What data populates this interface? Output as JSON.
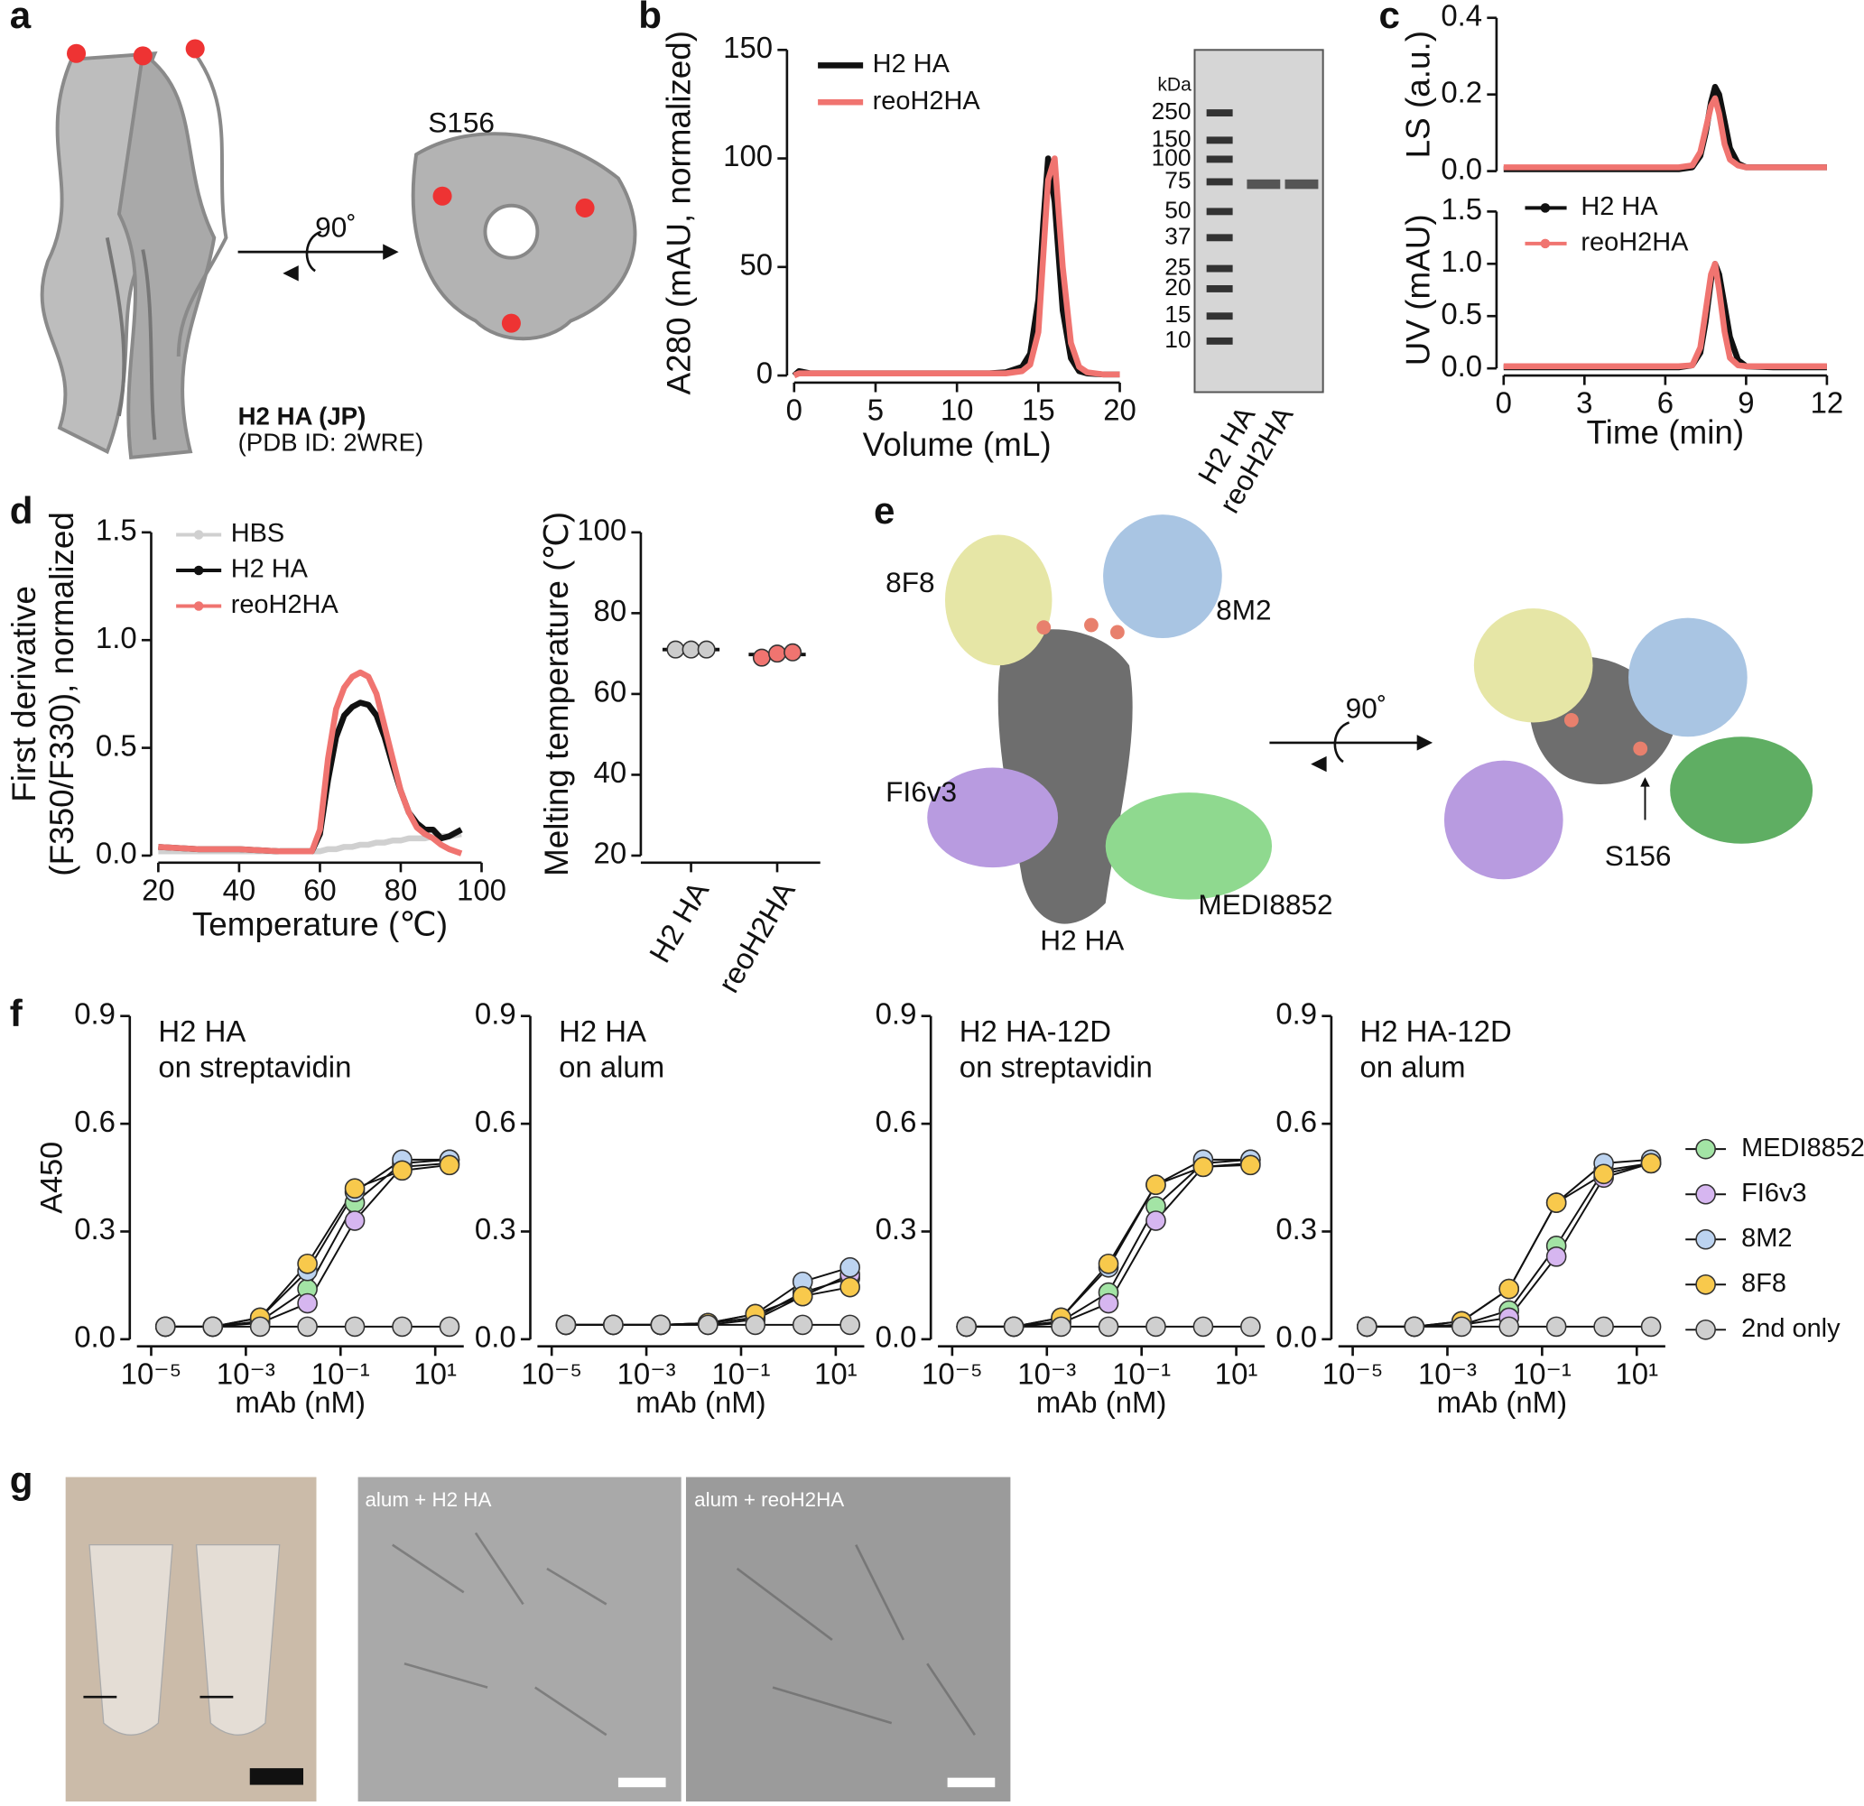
{
  "panel_labels": [
    "a",
    "b",
    "c",
    "d",
    "e",
    "f",
    "g"
  ],
  "structure": {
    "site": "S156",
    "rotation": "90˚",
    "name": "H2 HA (JP)",
    "pdb": "(PDB ID: 2WRE)"
  },
  "gel": {
    "unit": "kDa",
    "ladder": [
      250,
      150,
      100,
      75,
      50,
      37,
      25,
      20,
      15,
      10
    ],
    "lanes": [
      "H2 HA",
      "reoH2HA"
    ]
  },
  "em_map": {
    "antibodies": [
      "8F8",
      "8M2",
      "FI6v3",
      "MEDI8852"
    ],
    "antigen": "H2 HA",
    "rotation": "90˚",
    "site": "S156"
  },
  "micrographs": [
    "alum + H2 HA",
    "alum + reoH2HA"
  ],
  "chart_data": [
    {
      "type": "line",
      "xlabel": "Volume (mL)",
      "ylabel": "A280 (mAU, normalized)",
      "xlim": [
        0,
        20
      ],
      "xticks": [
        0,
        5,
        10,
        15,
        20
      ],
      "ylim": [
        0,
        150
      ],
      "yticks": [
        0,
        50,
        100,
        150
      ],
      "x": [
        0,
        0.3,
        1,
        5,
        10,
        12,
        13,
        14,
        14.5,
        15,
        15.3,
        15.6,
        16,
        16.5,
        17,
        17.5,
        18,
        19,
        20
      ],
      "series": [
        {
          "name": "H2 HA",
          "color": "#111111",
          "values": [
            0,
            2,
            1,
            1,
            1,
            1,
            1.5,
            4,
            10,
            35,
            70,
            100,
            80,
            30,
            8,
            2,
            1,
            0.5,
            0.5
          ]
        },
        {
          "name": "reoH2HA",
          "color": "#f07470",
          "values": [
            0,
            1,
            1,
            1,
            1,
            1,
            1,
            2,
            5,
            20,
            55,
            90,
            100,
            50,
            15,
            4,
            1.5,
            0.5,
            0.5
          ]
        }
      ]
    },
    {
      "type": "line",
      "xlabel": "Time (min)",
      "xlim": [
        0,
        12
      ],
      "xticks": [
        0,
        3,
        6,
        9,
        12
      ],
      "x": [
        0,
        1,
        2,
        3,
        4,
        5,
        6,
        6.5,
        7,
        7.3,
        7.5,
        7.7,
        7.85,
        8,
        8.2,
        8.4,
        8.7,
        9,
        10,
        11,
        12
      ],
      "series": [
        {
          "name": "H2 HA",
          "color": "#111111"
        },
        {
          "name": "reoH2HA",
          "color": "#f07470"
        }
      ],
      "panels": [
        {
          "ylabel": "LS (a.u.)",
          "ylim": [
            0,
            0.4
          ],
          "yticks": [
            {
              "value": 0,
              "label": "0.0"
            },
            0.2,
            0.4
          ],
          "values": [
            [
              0.005,
              0.005,
              0.005,
              0.005,
              0.005,
              0.005,
              0.005,
              0.005,
              0.01,
              0.04,
              0.1,
              0.18,
              0.22,
              0.2,
              0.13,
              0.06,
              0.02,
              0.01,
              0.01,
              0.01,
              0.01
            ],
            [
              0.01,
              0.01,
              0.01,
              0.01,
              0.01,
              0.01,
              0.01,
              0.01,
              0.015,
              0.05,
              0.11,
              0.17,
              0.19,
              0.15,
              0.07,
              0.03,
              0.015,
              0.01,
              0.01,
              0.01,
              0.01
            ]
          ]
        },
        {
          "ylabel": "UV (mAU)",
          "ylim": [
            0,
            1.5
          ],
          "yticks": [
            {
              "value": 0,
              "label": "0.0"
            },
            0.5,
            {
              "value": 1,
              "label": "1.0"
            },
            1.5
          ],
          "values": [
            [
              0.01,
              0.01,
              0.01,
              0.01,
              0.01,
              0.01,
              0.01,
              0.01,
              0.03,
              0.15,
              0.45,
              0.85,
              1.0,
              0.9,
              0.6,
              0.3,
              0.08,
              0.02,
              0.01,
              0.01,
              0.01
            ],
            [
              0.02,
              0.02,
              0.02,
              0.02,
              0.02,
              0.02,
              0.02,
              0.02,
              0.03,
              0.2,
              0.55,
              0.9,
              1.0,
              0.75,
              0.35,
              0.1,
              0.03,
              0.02,
              0.02,
              0.02,
              0.02
            ]
          ]
        }
      ]
    },
    {
      "type": "line",
      "xlabel": "Temperature (℃)",
      "ylabel": [
        "First derivative",
        "(F350/F330), normalized"
      ],
      "xlim": [
        20,
        100
      ],
      "xticks": [
        20,
        40,
        60,
        80,
        100
      ],
      "ylim": [
        0,
        1.5
      ],
      "yticks": [
        {
          "value": 0,
          "label": "0.0"
        },
        0.5,
        {
          "value": 1,
          "label": "1.0"
        },
        1.5
      ],
      "x": [
        20,
        30,
        40,
        50,
        55,
        58,
        60,
        62,
        64,
        66,
        68,
        70,
        72,
        74,
        76,
        78,
        80,
        82,
        84,
        86,
        88,
        90,
        92,
        95
      ],
      "series": [
        {
          "name": "HBS",
          "color": "#d0d0d0",
          "values": [
            0.02,
            0.02,
            0.02,
            0.02,
            0.02,
            0.02,
            0.02,
            0.03,
            0.03,
            0.04,
            0.04,
            0.05,
            0.05,
            0.06,
            0.06,
            0.07,
            0.07,
            0.08,
            0.08,
            0.08,
            0.09,
            0.09,
            0.09,
            0.1
          ]
        },
        {
          "name": "H2 HA",
          "color": "#111111",
          "values": [
            0.04,
            0.03,
            0.03,
            0.02,
            0.02,
            0.02,
            0.1,
            0.35,
            0.55,
            0.65,
            0.69,
            0.71,
            0.7,
            0.65,
            0.55,
            0.42,
            0.3,
            0.2,
            0.15,
            0.12,
            0.12,
            0.08,
            0.09,
            0.12
          ]
        },
        {
          "name": "reoH2HA",
          "color": "#f07470",
          "values": [
            0.04,
            0.03,
            0.03,
            0.02,
            0.02,
            0.02,
            0.12,
            0.45,
            0.68,
            0.78,
            0.83,
            0.85,
            0.83,
            0.75,
            0.6,
            0.45,
            0.3,
            0.2,
            0.13,
            0.1,
            0.08,
            0.05,
            0.03,
            0.01
          ]
        }
      ]
    },
    {
      "type": "strip",
      "ylabel": "Melting temperature (℃)",
      "categories": [
        "H2 HA",
        "reoH2HA"
      ],
      "colors": [
        "#cccccc",
        "#f07470"
      ],
      "values": [
        [
          71,
          71,
          71
        ],
        [
          69,
          70,
          70.3
        ]
      ],
      "ylim": [
        20,
        100
      ],
      "yticks": [
        20,
        40,
        60,
        80,
        100
      ]
    },
    {
      "type": "line",
      "xscale": "log",
      "xlabel": "mAb (nM)",
      "ylabel": "A450",
      "xlim": [
        5e-06,
        40
      ],
      "xticks": [
        {
          "value": 1e-05,
          "label": "10⁻⁵"
        },
        {
          "value": 0.001,
          "label": "10⁻³"
        },
        {
          "value": 0.1,
          "label": "10⁻¹"
        },
        {
          "value": 10,
          "label": "10¹"
        }
      ],
      "ylim": [
        0,
        0.9
      ],
      "yticks": [
        {
          "value": 0,
          "label": "0.0"
        },
        0.3,
        0.6,
        0.9
      ],
      "x": [
        2e-05,
        0.0002,
        0.002,
        0.02,
        0.2,
        2,
        20
      ],
      "series": [
        {
          "name": "MEDI8852",
          "color": "#a3e4a5"
        },
        {
          "name": "FI6v3",
          "color": "#d6b6f0"
        },
        {
          "name": "8M2",
          "color": "#bcd3f0"
        },
        {
          "name": "8F8",
          "color": "#f8c94c"
        },
        {
          "name": "2nd only",
          "color": "#cfcfcf"
        }
      ],
      "panels": [
        {
          "title": [
            "H2 HA",
            "on streptavidin"
          ],
          "values": [
            [
              0.035,
              0.035,
              0.05,
              0.14,
              0.38,
              0.49,
              0.5
            ],
            [
              0.035,
              0.035,
              0.045,
              0.1,
              0.33,
              0.48,
              0.49
            ],
            [
              0.035,
              0.035,
              0.06,
              0.19,
              0.41,
              0.5,
              0.5
            ],
            [
              0.035,
              0.035,
              0.06,
              0.21,
              0.42,
              0.47,
              0.485
            ],
            [
              0.035,
              0.035,
              0.035,
              0.035,
              0.035,
              0.035,
              0.035
            ]
          ]
        },
        {
          "title": [
            "H2 HA",
            "on alum"
          ],
          "values": [
            [
              0.04,
              0.04,
              0.04,
              0.045,
              0.06,
              0.13,
              0.17
            ],
            [
              0.04,
              0.04,
              0.04,
              0.04,
              0.055,
              0.12,
              0.18
            ],
            [
              0.04,
              0.04,
              0.04,
              0.045,
              0.07,
              0.16,
              0.2
            ],
            [
              0.04,
              0.04,
              0.04,
              0.045,
              0.07,
              0.12,
              0.145
            ],
            [
              0.04,
              0.04,
              0.04,
              0.04,
              0.04,
              0.04,
              0.04
            ]
          ]
        },
        {
          "title": [
            "H2 HA-12D",
            "on streptavidin"
          ],
          "values": [
            [
              0.035,
              0.035,
              0.05,
              0.13,
              0.37,
              0.49,
              0.5
            ],
            [
              0.035,
              0.035,
              0.045,
              0.1,
              0.33,
              0.48,
              0.49
            ],
            [
              0.035,
              0.035,
              0.06,
              0.2,
              0.43,
              0.5,
              0.5
            ],
            [
              0.035,
              0.035,
              0.06,
              0.21,
              0.43,
              0.48,
              0.485
            ],
            [
              0.035,
              0.035,
              0.035,
              0.035,
              0.035,
              0.035,
              0.035
            ]
          ]
        },
        {
          "title": [
            "H2 HA-12D",
            "on alum"
          ],
          "values": [
            [
              0.035,
              0.035,
              0.04,
              0.08,
              0.26,
              0.47,
              0.49
            ],
            [
              0.035,
              0.035,
              0.04,
              0.06,
              0.23,
              0.45,
              0.49
            ],
            [
              0.035,
              0.035,
              0.05,
              0.14,
              0.38,
              0.49,
              0.5
            ],
            [
              0.035,
              0.035,
              0.05,
              0.14,
              0.38,
              0.46,
              0.49
            ],
            [
              0.035,
              0.035,
              0.035,
              0.035,
              0.035,
              0.035,
              0.035
            ]
          ]
        }
      ]
    }
  ]
}
